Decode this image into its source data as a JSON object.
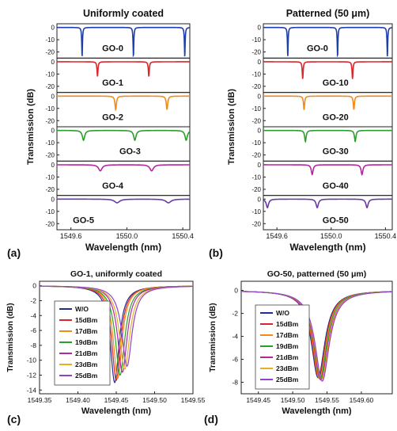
{
  "figure_labels": [
    "(a)",
    "(b)",
    "(c)",
    "(d)"
  ],
  "chart_data": [
    {
      "panel": "(a)",
      "type": "line",
      "title": "Uniformly coated",
      "xlabel": "Wavelength (nm)",
      "ylabel": "Transmission (dB)",
      "xlim": [
        1549.5,
        1550.45
      ],
      "xticks": [
        "1549.6",
        "1550.0",
        "1550.4"
      ],
      "xtick_values": [
        1549.6,
        1550.0,
        1550.4
      ],
      "ylim": [
        -25,
        3
      ],
      "yticks": [
        "0",
        "-10",
        "-20"
      ],
      "ytick_values": [
        0,
        -10,
        -20
      ],
      "fsr_nm": 0.367,
      "series": [
        {
          "name": "GO-0",
          "color": "#1f3fa8",
          "dips_nm": [
            1549.68,
            1550.047,
            1550.414
          ],
          "depth_db": 24,
          "fwhm_nm": 0.006
        },
        {
          "name": "GO-1",
          "color": "#d8262b",
          "dips_nm": [
            1549.79,
            1550.157
          ],
          "depth_db": 12,
          "fwhm_nm": 0.008
        },
        {
          "name": "GO-2",
          "color": "#f28a1a",
          "dips_nm": [
            1549.92,
            1550.287
          ],
          "depth_db": 11,
          "fwhm_nm": 0.012
        },
        {
          "name": "GO-3",
          "color": "#2aa02a",
          "dips_nm": [
            1549.69,
            1550.057,
            1550.424
          ],
          "depth_db": 8,
          "fwhm_nm": 0.02
        },
        {
          "name": "GO-4",
          "color": "#b3279f",
          "dips_nm": [
            1549.81,
            1550.177
          ],
          "depth_db": 5,
          "fwhm_nm": 0.03
        },
        {
          "name": "GO-5",
          "color": "#6a3aa8",
          "dips_nm": [
            1549.93,
            1550.297
          ],
          "depth_db": 3,
          "fwhm_nm": 0.045
        }
      ]
    },
    {
      "panel": "(b)",
      "type": "line",
      "title": "Patterned (50 μm)",
      "xlabel": "Wavelength (nm)",
      "ylabel": "Transmission (dB)",
      "xlim": [
        1549.5,
        1550.45
      ],
      "xticks": [
        "1549.6",
        "1550.0",
        "1550.4"
      ],
      "xtick_values": [
        1549.6,
        1550.0,
        1550.4
      ],
      "ylim": [
        -25,
        3
      ],
      "yticks": [
        "0",
        "-10",
        "-20"
      ],
      "ytick_values": [
        0,
        -10,
        -20
      ],
      "fsr_nm": 0.367,
      "series": [
        {
          "name": "GO-0",
          "color": "#1f3fa8",
          "dips_nm": [
            1549.68,
            1550.047,
            1550.414
          ],
          "depth_db": 24,
          "fwhm_nm": 0.006
        },
        {
          "name": "GO-10",
          "color": "#d8262b",
          "dips_nm": [
            1549.79,
            1550.157
          ],
          "depth_db": 14,
          "fwhm_nm": 0.008
        },
        {
          "name": "GO-20",
          "color": "#f28a1a",
          "dips_nm": [
            1549.8,
            1550.167
          ],
          "depth_db": 11,
          "fwhm_nm": 0.01
        },
        {
          "name": "GO-30",
          "color": "#2aa02a",
          "dips_nm": [
            1549.81,
            1550.177
          ],
          "depth_db": 9,
          "fwhm_nm": 0.013
        },
        {
          "name": "GO-40",
          "color": "#b3279f",
          "dips_nm": [
            1549.86,
            1550.227
          ],
          "depth_db": 8,
          "fwhm_nm": 0.016
        },
        {
          "name": "GO-50",
          "color": "#6a3aa8",
          "dips_nm": [
            1549.53,
            1549.897,
            1550.264
          ],
          "depth_db": 7,
          "fwhm_nm": 0.02
        }
      ]
    },
    {
      "panel": "(c)",
      "type": "line",
      "title": "GO-1, uniformly coated",
      "xlabel": "Wavelength (nm)",
      "ylabel": "Transmission (dB)",
      "xlim": [
        1549.35,
        1549.55
      ],
      "xticks": [
        "1549.35",
        "1549.40",
        "1549.45",
        "1549.50",
        "1549.55"
      ],
      "xtick_values": [
        1549.35,
        1549.4,
        1549.45,
        1549.5,
        1549.55
      ],
      "ylim": [
        -14.5,
        0.6
      ],
      "yticks": [
        "0",
        "-2",
        "-4",
        "-6",
        "-8",
        "-10",
        "-12",
        "-14"
      ],
      "ytick_values": [
        0,
        -2,
        -4,
        -6,
        -8,
        -10,
        -12,
        -14
      ],
      "series": [
        {
          "name": "W/O",
          "color": "#1f2f8f",
          "center_nm": 1549.448,
          "depth_db": 13.0,
          "fwhm_nm": 0.014
        },
        {
          "name": "15dBm",
          "color": "#d8262b",
          "center_nm": 1549.45,
          "depth_db": 12.7,
          "fwhm_nm": 0.014
        },
        {
          "name": "17dBm",
          "color": "#f28a1a",
          "center_nm": 1549.452,
          "depth_db": 12.4,
          "fwhm_nm": 0.014
        },
        {
          "name": "19dBm",
          "color": "#2aa02a",
          "center_nm": 1549.455,
          "depth_db": 12.0,
          "fwhm_nm": 0.015
        },
        {
          "name": "21dBm",
          "color": "#b3279f",
          "center_nm": 1549.458,
          "depth_db": 11.6,
          "fwhm_nm": 0.015
        },
        {
          "name": "23dBm",
          "color": "#e8b020",
          "center_nm": 1549.461,
          "depth_db": 11.2,
          "fwhm_nm": 0.016
        },
        {
          "name": "25dBm",
          "color": "#8e44c8",
          "center_nm": 1549.464,
          "depth_db": 10.8,
          "fwhm_nm": 0.016
        }
      ]
    },
    {
      "panel": "(d)",
      "type": "line",
      "title": "GO-50, patterned (50 μm)",
      "xlabel": "Wavelength (nm)",
      "ylabel": "Transmission (dB)",
      "xlim": [
        1549.425,
        1549.645
      ],
      "xticks": [
        "1549.45",
        "1549.50",
        "1549.55",
        "1549.60"
      ],
      "xtick_values": [
        1549.45,
        1549.5,
        1549.55,
        1549.6
      ],
      "ylim": [
        -9,
        0.8
      ],
      "yticks": [
        "0",
        "-2",
        "-4",
        "-6",
        "-8"
      ],
      "ytick_values": [
        0,
        -2,
        -4,
        -6,
        -8
      ],
      "series": [
        {
          "name": "W/O",
          "color": "#1f2f8f",
          "center_nm": 1549.537,
          "depth_db": 7.6,
          "fwhm_nm": 0.024
        },
        {
          "name": "15dBm",
          "color": "#d8262b",
          "center_nm": 1549.538,
          "depth_db": 7.6,
          "fwhm_nm": 0.024
        },
        {
          "name": "17dBm",
          "color": "#f28a1a",
          "center_nm": 1549.539,
          "depth_db": 7.7,
          "fwhm_nm": 0.024
        },
        {
          "name": "19dBm",
          "color": "#2aa02a",
          "center_nm": 1549.54,
          "depth_db": 7.7,
          "fwhm_nm": 0.024
        },
        {
          "name": "21dBm",
          "color": "#b3279f",
          "center_nm": 1549.541,
          "depth_db": 7.8,
          "fwhm_nm": 0.025
        },
        {
          "name": "23dBm",
          "color": "#e8b020",
          "center_nm": 1549.542,
          "depth_db": 7.8,
          "fwhm_nm": 0.025
        },
        {
          "name": "25dBm",
          "color": "#8e44c8",
          "center_nm": 1549.543,
          "depth_db": 7.9,
          "fwhm_nm": 0.025
        }
      ]
    }
  ]
}
